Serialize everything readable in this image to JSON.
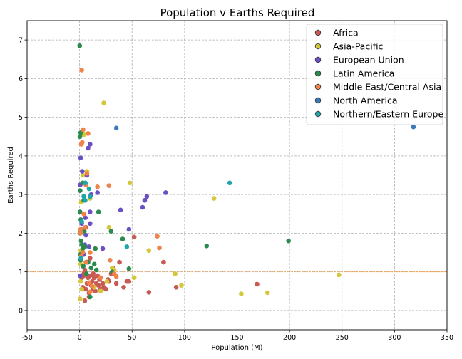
{
  "chart_data": {
    "type": "scatter",
    "title": "Population v Earths Required",
    "xlabel": "Population (M)",
    "ylabel": "Earths Required",
    "xlim": [
      -50,
      350
    ],
    "ylim": [
      -0.5,
      7.5
    ],
    "xticks": [
      -50,
      0,
      50,
      100,
      150,
      200,
      250,
      300,
      350
    ],
    "yticks": [
      0,
      1,
      2,
      3,
      4,
      5,
      6,
      7
    ],
    "grid": true,
    "reference_line": {
      "y": 1,
      "color": "#f0a04b"
    },
    "legend_position": "top-right",
    "series": [
      {
        "name": "Africa",
        "color": "#c85a54",
        "points": [
          [
            2,
            0.85
          ],
          [
            3,
            0.6
          ],
          [
            4,
            0.95
          ],
          [
            5,
            0.25
          ],
          [
            6,
            0.55
          ],
          [
            7,
            0.7
          ],
          [
            8,
            0.85
          ],
          [
            9,
            0.45
          ],
          [
            10,
            0.9
          ],
          [
            11,
            0.65
          ],
          [
            12,
            0.75
          ],
          [
            13,
            0.55
          ],
          [
            14,
            0.85
          ],
          [
            15,
            0.5
          ],
          [
            16,
            0.7
          ],
          [
            17,
            0.9
          ],
          [
            18,
            0.65
          ],
          [
            19,
            0.8
          ],
          [
            20,
            0.55
          ],
          [
            22,
            0.7
          ],
          [
            23,
            0.6
          ],
          [
            25,
            0.55
          ],
          [
            27,
            0.8
          ],
          [
            28,
            0.75
          ],
          [
            30,
            0.95
          ],
          [
            32,
            1.1
          ],
          [
            35,
            0.7
          ],
          [
            38,
            1.25
          ],
          [
            42,
            0.6
          ],
          [
            45,
            0.75
          ],
          [
            47,
            0.75
          ],
          [
            52,
            1.9
          ],
          [
            66,
            0.47
          ],
          [
            80,
            1.25
          ],
          [
            92,
            0.6
          ],
          [
            169,
            0.68
          ],
          [
            5,
            1.05
          ],
          [
            8,
            1.25
          ],
          [
            10,
            1.35
          ],
          [
            3,
            1.15
          ],
          [
            6,
            2.15
          ],
          [
            9,
            0.35
          ],
          [
            4,
            0.9
          ],
          [
            13,
            0.95
          ]
        ]
      },
      {
        "name": "Asia-Pacific",
        "color": "#d4c73a",
        "points": [
          [
            0.5,
            0.3
          ],
          [
            1,
            0.75
          ],
          [
            1,
            1.2
          ],
          [
            1,
            1.55
          ],
          [
            1.5,
            2.8
          ],
          [
            2,
            0.55
          ],
          [
            3,
            3.5
          ],
          [
            4,
            4.55
          ],
          [
            7,
            3.6
          ],
          [
            10,
            2.9
          ],
          [
            14,
            0.6
          ],
          [
            20,
            0.5
          ],
          [
            23,
            5.37
          ],
          [
            26,
            0.75
          ],
          [
            28,
            2.15
          ],
          [
            31,
            1.1
          ],
          [
            33,
            1.05
          ],
          [
            48,
            3.3
          ],
          [
            52,
            0.85
          ],
          [
            66,
            1.55
          ],
          [
            91,
            0.95
          ],
          [
            97,
            0.65
          ],
          [
            128,
            2.9
          ],
          [
            154,
            0.43
          ],
          [
            179,
            0.46
          ],
          [
            247,
            0.92
          ]
        ]
      },
      {
        "name": "European Union",
        "color": "#6a50c4",
        "points": [
          [
            0.5,
            0.9
          ],
          [
            0.6,
            3.25
          ],
          [
            1,
            3.95
          ],
          [
            1.3,
            2.1
          ],
          [
            2,
            2.25
          ],
          [
            2.5,
            3.6
          ],
          [
            4,
            1.45
          ],
          [
            5,
            1.7
          ],
          [
            5.5,
            2.4
          ],
          [
            6,
            1.95
          ],
          [
            7,
            3.5
          ],
          [
            8,
            4.2
          ],
          [
            9,
            1.65
          ],
          [
            10,
            2.55
          ],
          [
            10,
            4.3
          ],
          [
            11,
            3.0
          ],
          [
            17,
            3.05
          ],
          [
            22,
            1.6
          ],
          [
            39,
            2.6
          ],
          [
            47,
            2.1
          ],
          [
            60,
            2.67
          ],
          [
            62,
            2.85
          ],
          [
            64,
            2.95
          ],
          [
            82,
            3.05
          ],
          [
            10,
            2.25
          ]
        ]
      },
      {
        "name": "Latin America",
        "color": "#2b8a4e",
        "points": [
          [
            0.1,
            6.85
          ],
          [
            0.3,
            4.5
          ],
          [
            0.5,
            3.1
          ],
          [
            0.5,
            2.55
          ],
          [
            0.6,
            2.0
          ],
          [
            0.8,
            1.45
          ],
          [
            1,
            1.3
          ],
          [
            1,
            4.6
          ],
          [
            1.2,
            2.35
          ],
          [
            1.5,
            1.8
          ],
          [
            2,
            1.7
          ],
          [
            3,
            1.6
          ],
          [
            3,
            3.3
          ],
          [
            3.5,
            1.15
          ],
          [
            4,
            2.85
          ],
          [
            4.5,
            2.05
          ],
          [
            5,
            1.65
          ],
          [
            6.5,
            0.95
          ],
          [
            7,
            1.25
          ],
          [
            10,
            0.35
          ],
          [
            11,
            1.1
          ],
          [
            14,
            1.2
          ],
          [
            15,
            1.6
          ],
          [
            16,
            1.05
          ],
          [
            18,
            2.55
          ],
          [
            30,
            2.05
          ],
          [
            31,
            1.0
          ],
          [
            41,
            1.85
          ],
          [
            47,
            1.08
          ],
          [
            121,
            1.67
          ],
          [
            199,
            1.8
          ],
          [
            8,
            1.25
          ]
        ]
      },
      {
        "name": "Middle East/Central Asia",
        "color": "#f0834a",
        "points": [
          [
            1,
            2.0
          ],
          [
            1,
            2.1
          ],
          [
            1.5,
            1.4
          ],
          [
            1.6,
            4.3
          ],
          [
            2,
            6.22
          ],
          [
            2.5,
            4.35
          ],
          [
            3,
            1.5
          ],
          [
            3.3,
            4.68
          ],
          [
            4,
            2.5
          ],
          [
            5,
            2.15
          ],
          [
            6,
            1.25
          ],
          [
            6,
            3.25
          ],
          [
            7,
            3.55
          ],
          [
            8,
            4.58
          ],
          [
            9,
            0.72
          ],
          [
            10,
            1.5
          ],
          [
            10,
            0.48
          ],
          [
            12,
            0.63
          ],
          [
            17,
            3.2
          ],
          [
            20,
            0.85
          ],
          [
            28,
            3.23
          ],
          [
            29,
            1.3
          ],
          [
            33,
            0.95
          ],
          [
            35,
            0.88
          ],
          [
            74,
            1.92
          ],
          [
            76,
            1.62
          ]
        ]
      },
      {
        "name": "North America",
        "color": "#3a7ab8",
        "points": [
          [
            35,
            4.72
          ],
          [
            318,
            4.75
          ]
        ]
      },
      {
        "name": "Northern/Eastern Europe",
        "color": "#1fa6a8",
        "points": [
          [
            1.3,
            1.35
          ],
          [
            2,
            2.3
          ],
          [
            4,
            2.95
          ],
          [
            5.3,
            2.85
          ],
          [
            5.5,
            3.3
          ],
          [
            9,
            3.15
          ],
          [
            10,
            2.95
          ],
          [
            45,
            1.65
          ],
          [
            143,
            3.3
          ]
        ]
      }
    ]
  }
}
